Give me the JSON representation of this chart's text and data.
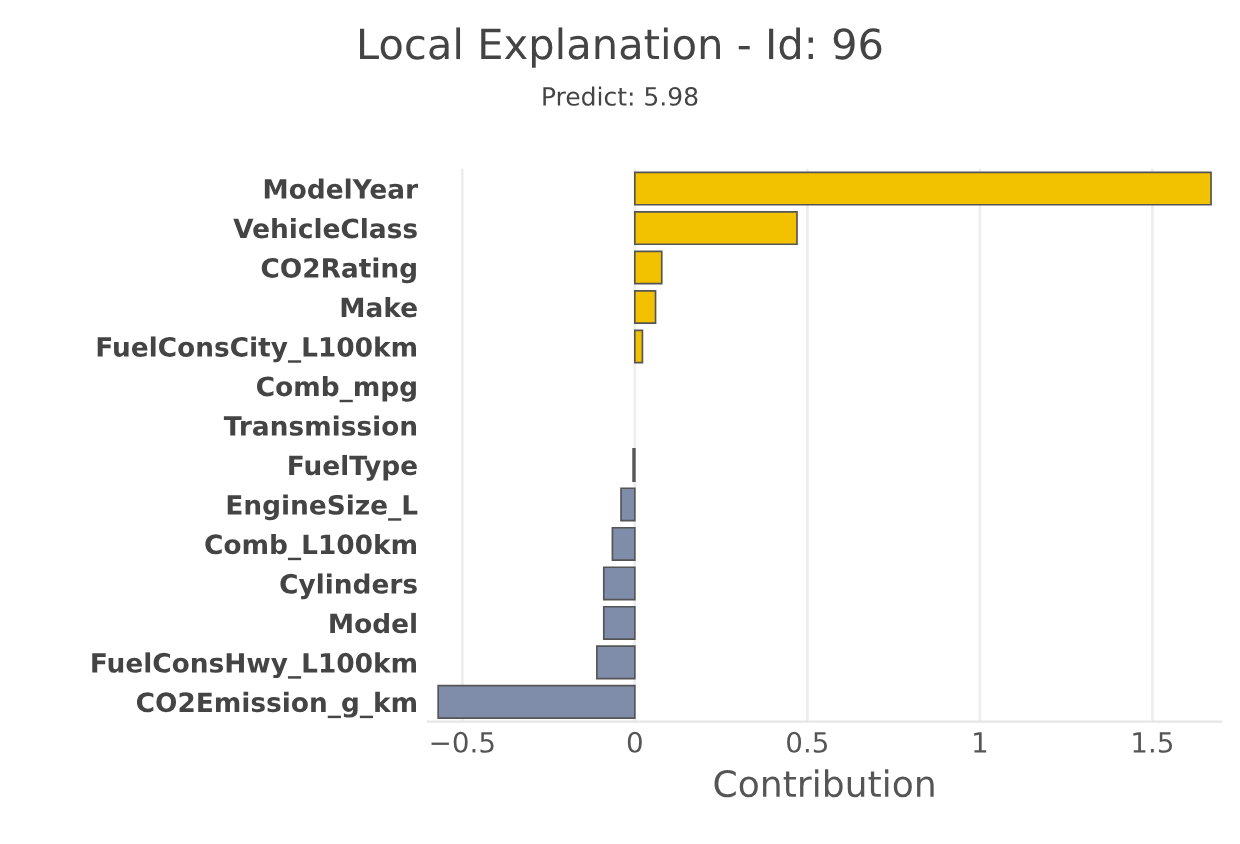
{
  "chart_data": {
    "type": "bar",
    "orientation": "horizontal",
    "title": "Local Explanation - Id: 96",
    "subtitle": "Predict: 5.98",
    "xlabel": "Contribution",
    "categories": [
      "ModelYear",
      "VehicleClass",
      "CO2Rating",
      "Make",
      "FuelConsCity_L100km",
      "Comb_mpg",
      "Transmission",
      "FuelType",
      "EngineSize_L",
      "Comb_L100km",
      "Cylinders",
      "Model",
      "FuelConsHwy_L100km",
      "CO2Emission_g_km"
    ],
    "values": [
      1.67,
      0.47,
      0.078,
      0.06,
      0.022,
      null,
      null,
      -0.005,
      -0.04,
      -0.065,
      -0.09,
      -0.09,
      -0.11,
      -0.57
    ],
    "colors": [
      "#f2c200",
      "#f2c200",
      "#f2c200",
      "#f2c200",
      "#f2c200",
      "#f2c200",
      "#f2c200",
      "#7f8daa",
      "#7f8daa",
      "#7f8daa",
      "#7f8daa",
      "#7f8daa",
      "#7f8daa",
      "#7f8daa"
    ],
    "xlim": [
      -0.6,
      1.7
    ],
    "xticks": [
      {
        "value": -0.5,
        "label": "−0.5"
      },
      0,
      0.5,
      1,
      1.5
    ],
    "grid": "x"
  }
}
